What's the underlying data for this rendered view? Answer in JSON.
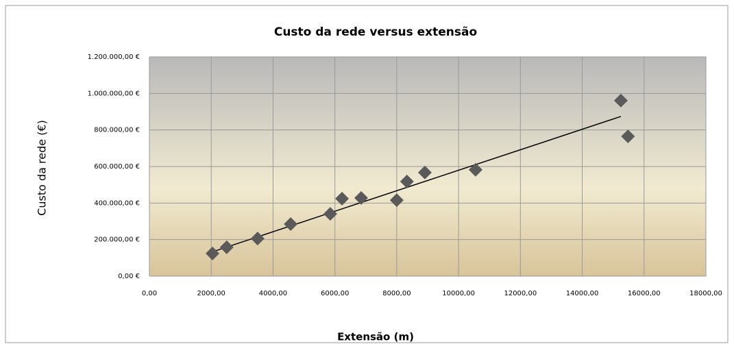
{
  "chart_data": {
    "type": "scatter",
    "title": "Custo da rede versus extensão",
    "x_label": "Extensão (m)",
    "y_label": "Custo da rede (€)",
    "series": [
      {
        "color": "#5a5a5a",
        "x": [
          2040,
          2500,
          3500,
          4570,
          5850,
          6230,
          6850,
          8000,
          8330,
          8910,
          10550,
          15250,
          15480
        ],
        "values": [
          124000,
          158000,
          206000,
          285000,
          341000,
          424000,
          428000,
          416000,
          518000,
          567000,
          582000,
          961000,
          765000
        ]
      }
    ],
    "trendline": {
      "color": "#000000",
      "x": [
        2000,
        15250
      ],
      "values": [
        131000,
        874000
      ]
    },
    "xlim": [
      0,
      18000
    ],
    "xticks": [
      {
        "value": 0,
        "label": "0,00"
      },
      {
        "value": 2000,
        "label": "2000,00"
      },
      {
        "value": 4000,
        "label": "4000,00"
      },
      {
        "value": 6000,
        "label": "6000,00"
      },
      {
        "value": 8000,
        "label": "8000,00"
      },
      {
        "value": 10000,
        "label": "10000,00"
      },
      {
        "value": 12000,
        "label": "12000,00"
      },
      {
        "value": 14000,
        "label": "14000,00"
      },
      {
        "value": 16000,
        "label": "16000,00"
      },
      {
        "value": 18000,
        "label": "18000,00"
      }
    ],
    "ylim": [
      0,
      1200000
    ],
    "yticks": [
      {
        "value": 0,
        "label": "0,00 €"
      },
      {
        "value": 200000,
        "label": "200.000,00 €"
      },
      {
        "value": 400000,
        "label": "400.000,00 €"
      },
      {
        "value": 600000,
        "label": "600.000,00 €"
      },
      {
        "value": 800000,
        "label": "800.000,00 €"
      },
      {
        "value": 1000000,
        "label": "1.000.000,00 €"
      },
      {
        "value": 1200000,
        "label": "1.200.000,00 €"
      }
    ],
    "grid": true
  }
}
